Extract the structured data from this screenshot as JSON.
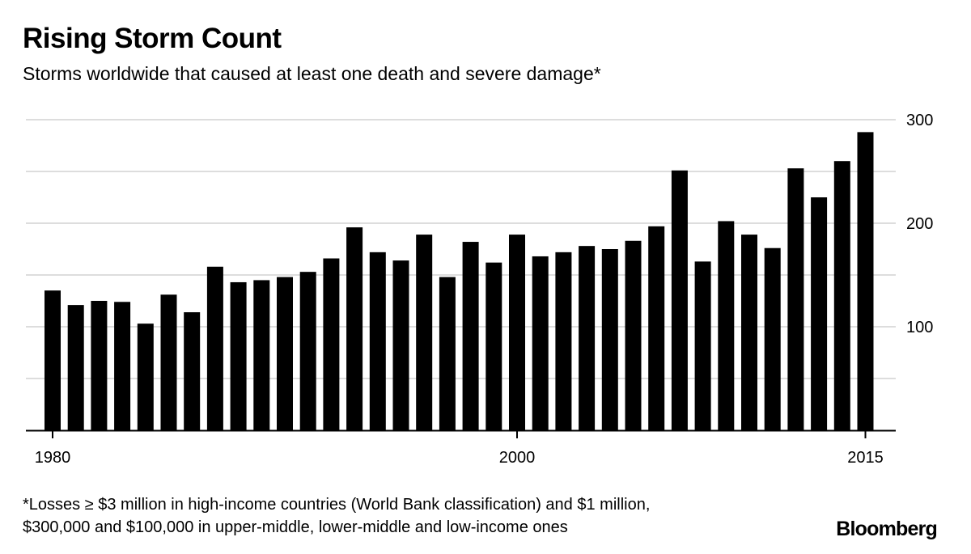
{
  "title": "Rising Storm Count",
  "subtitle": "Storms worldwide that caused at least one death and severe damage*",
  "footnote": {
    "line1": "*Losses ≥ $3 million in high-income countries (World Bank classification) and $1 million,",
    "line2": "$300,000 and $100,000 in upper-middle, lower-middle and low-income ones"
  },
  "source_logo": "Bloomberg",
  "chart_data": {
    "type": "bar",
    "x": [
      1980,
      1981,
      1982,
      1983,
      1984,
      1985,
      1986,
      1987,
      1988,
      1989,
      1990,
      1991,
      1992,
      1993,
      1994,
      1995,
      1996,
      1997,
      1998,
      1999,
      2000,
      2001,
      2002,
      2003,
      2004,
      2005,
      2006,
      2007,
      2008,
      2009,
      2010,
      2011,
      2012,
      2013,
      2014,
      2015
    ],
    "values": [
      135,
      121,
      125,
      124,
      103,
      131,
      114,
      158,
      143,
      145,
      148,
      153,
      166,
      196,
      172,
      164,
      189,
      148,
      182,
      162,
      189,
      168,
      172,
      178,
      175,
      183,
      197,
      251,
      163,
      202,
      189,
      176,
      253,
      225,
      260,
      288
    ],
    "x_tick_labels": [
      "1980",
      "2000",
      "2015"
    ],
    "x_tick_values": [
      1980,
      2000,
      2015
    ],
    "y_tick_labels": [
      "100",
      "200",
      "300"
    ],
    "y_tick_values": [
      100,
      200,
      300
    ],
    "gridlines": [
      50,
      100,
      150,
      200,
      250,
      300
    ],
    "ylim": [
      0,
      300
    ],
    "xlabel": "",
    "ylabel": "",
    "grid": true,
    "bar_color": "#000000",
    "grid_color": "#dddddd",
    "axis_color": "#000000"
  }
}
